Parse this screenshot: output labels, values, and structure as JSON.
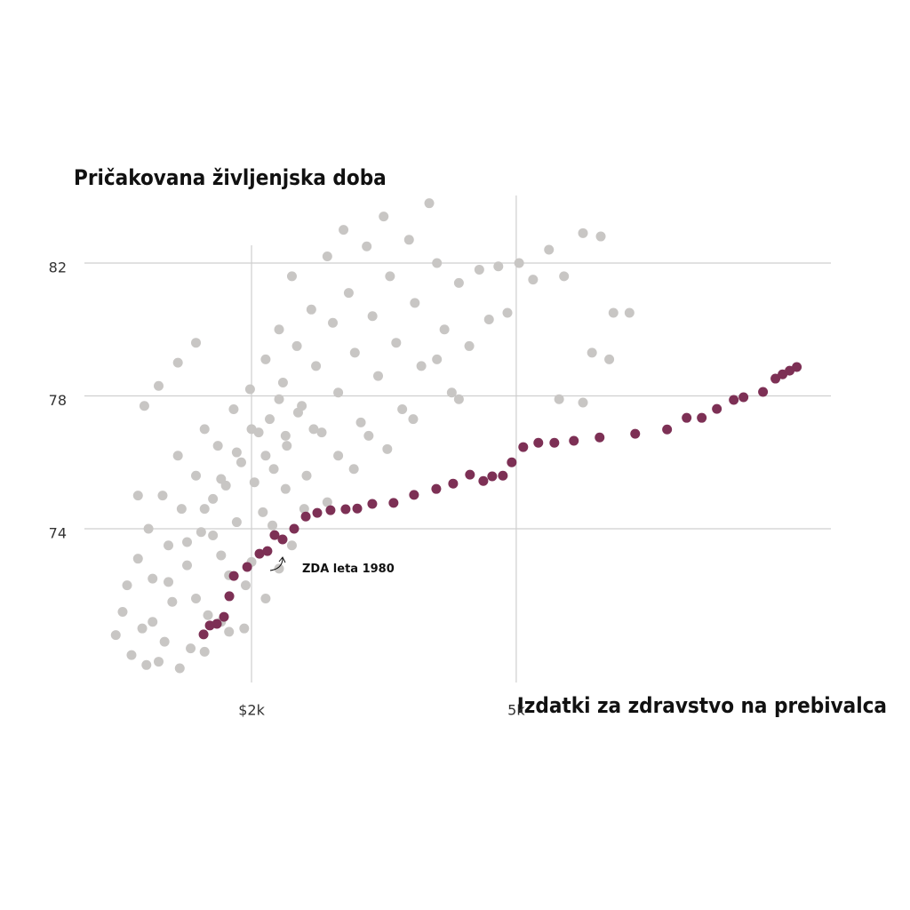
{
  "chart_data": {
    "type": "scatter",
    "title": "Pričakovana življenjska doba",
    "x_label": "Izdatki za zdravstvo na prebivalca",
    "annotation": "ZDA leta 1980",
    "xlim": [
      1200,
      15000
    ],
    "log_x": true,
    "xticks": [
      {
        "value": 2000,
        "label": "$2k"
      },
      {
        "value": 5000,
        "label": "5k"
      }
    ],
    "ylim": [
      69.4,
      84
    ],
    "yticks": [
      74,
      78,
      82
    ],
    "grid": true,
    "series": [
      {
        "color": "#c8c6c4",
        "x": [
          1250,
          1280,
          1300,
          1320,
          1350,
          1370,
          1400,
          1420,
          1450,
          1470,
          1500,
          1520,
          1550,
          1570,
          1600,
          1620,
          1650,
          1680,
          1700,
          1720,
          1750,
          1780,
          1800,
          1830,
          1850,
          1880,
          1900,
          1930,
          1960,
          1990,
          2020,
          2050,
          2080,
          2100,
          2130,
          2160,
          2200,
          2230,
          2260,
          2300,
          2340,
          2380,
          2420,
          2460,
          2500,
          2550,
          2600,
          2650,
          2700,
          2750,
          2800,
          2860,
          2920,
          2980,
          3040,
          3100,
          3160,
          3230,
          3300,
          3370,
          3450,
          3520,
          3600,
          3700,
          3800,
          3900,
          4000,
          4100,
          4250,
          4400,
          4550,
          4700,
          4850,
          5050,
          5300,
          5600,
          5900,
          6300,
          6700,
          7000,
          7400,
          6500,
          6900,
          5800,
          6300,
          4100,
          1350,
          1380,
          1450,
          1550,
          1650,
          1390,
          1480,
          1560,
          1700,
          1800,
          1950,
          2100,
          2200,
          2300,
          2400,
          1850,
          1750,
          1650,
          2000,
          2150,
          2250,
          2350,
          2480,
          2600,
          2700,
          2850,
          3000,
          3200,
          3500,
          3800,
          1900,
          2000,
          1800,
          1700,
          1600,
          1500,
          1420,
          2100,
          2200,
          2250
        ],
        "values": [
          70.8,
          71.5,
          72.3,
          70.2,
          73.1,
          71.0,
          74.0,
          72.5,
          70.0,
          75.0,
          73.5,
          71.8,
          76.2,
          74.6,
          72.9,
          70.4,
          75.6,
          73.9,
          77.0,
          71.4,
          74.9,
          76.5,
          73.2,
          75.3,
          70.9,
          77.6,
          74.2,
          76.0,
          72.3,
          78.2,
          75.4,
          76.9,
          74.5,
          79.1,
          77.3,
          75.8,
          80.0,
          78.4,
          76.5,
          81.6,
          79.5,
          77.7,
          75.6,
          80.6,
          78.9,
          76.9,
          82.2,
          80.2,
          78.1,
          83.0,
          81.1,
          79.3,
          77.2,
          82.5,
          80.4,
          78.6,
          83.4,
          81.6,
          79.6,
          77.6,
          82.7,
          80.8,
          78.9,
          83.8,
          82.0,
          80.0,
          78.1,
          81.4,
          79.5,
          81.8,
          80.3,
          81.9,
          80.5,
          82.0,
          81.5,
          82.4,
          81.6,
          82.9,
          82.8,
          80.5,
          80.5,
          79.3,
          79.1,
          77.9,
          77.8,
          77.9,
          75.0,
          77.7,
          78.3,
          79.0,
          79.6,
          69.9,
          70.6,
          69.8,
          70.3,
          71.2,
          71.0,
          71.9,
          72.8,
          73.5,
          74.6,
          72.6,
          73.8,
          71.9,
          73.0,
          74.1,
          75.2,
          77.5,
          77.0,
          74.8,
          76.2,
          75.8,
          76.8,
          76.4,
          77.3,
          79.1,
          76.3,
          77.0,
          75.5,
          74.6,
          73.6,
          72.4,
          71.2,
          76.2,
          77.9,
          76.8
        ]
      },
      {
        "color": "#7d3055",
        "x": [
          1694,
          1731,
          1774,
          1818,
          1852,
          1881,
          1970,
          2056,
          2113,
          2166,
          2227,
          2318,
          2413,
          2511,
          2629,
          2770,
          2884,
          3038,
          3270,
          3510,
          3791,
          4019,
          4260,
          4462,
          4601,
          4774,
          4923,
          5123,
          5398,
          5706,
          6104,
          6674,
          7548,
          8429,
          9020,
          9504,
          10014,
          10617,
          10982,
          11749,
          12266,
          12572,
          12885,
          13206
        ],
        "values": [
          70.82,
          71.09,
          71.14,
          71.35,
          71.97,
          72.58,
          72.85,
          73.25,
          73.33,
          73.81,
          73.68,
          74.0,
          74.37,
          74.48,
          74.56,
          74.59,
          74.61,
          74.75,
          74.78,
          75.02,
          75.2,
          75.36,
          75.63,
          75.44,
          75.58,
          75.6,
          76.0,
          76.46,
          76.59,
          76.59,
          76.65,
          76.75,
          76.86,
          76.99,
          77.34,
          77.34,
          77.61,
          77.88,
          77.96,
          78.12,
          78.52,
          78.65,
          78.76,
          78.87
        ]
      }
    ]
  }
}
